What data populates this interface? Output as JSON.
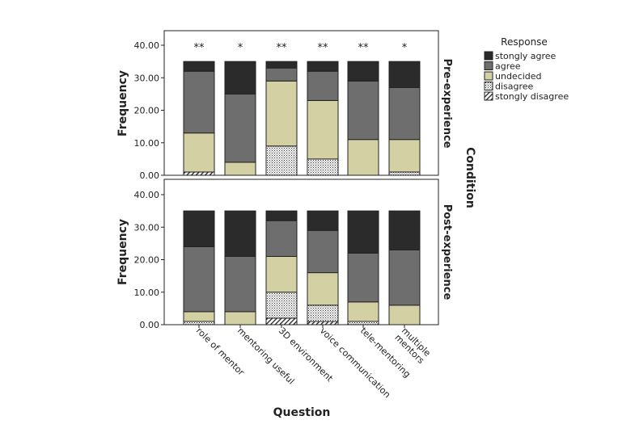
{
  "chart_data": {
    "type": "bar",
    "stacked": true,
    "xlabel": "Question",
    "ylabel": "Frequency",
    "facet_label": "Condition",
    "ylim": [
      0,
      40
    ],
    "yticks": [
      "0.00",
      "10.00",
      "20.00",
      "30.00",
      "40.00"
    ],
    "ytick_values": [
      0,
      10,
      20,
      30,
      40
    ],
    "categories": [
      "role of mentor",
      "mentoring useful",
      "3D environment",
      "voice communication",
      "tele-mentoring",
      [
        "multiple",
        "mentors"
      ]
    ],
    "legend": {
      "title": "Response",
      "placement": "top-right",
      "entries": [
        "stongly agree",
        "agree",
        "undecided",
        "disagree",
        "stongly disagree"
      ]
    },
    "series_order": [
      "stongly disagree",
      "disagree",
      "undecided",
      "agree",
      "stongly agree"
    ],
    "colors": {
      "stongly agree": "#2b2b2b",
      "agree": "#6e6e6e",
      "undecided": "#d3d0a4",
      "disagree": "dots",
      "stongly disagree": "hatch"
    },
    "panels": [
      {
        "name": "Pre-experience",
        "significance": [
          "**",
          "*",
          "**",
          "**",
          "**",
          "*"
        ],
        "series": [
          {
            "name": "stongly disagree",
            "values": [
              1,
              0,
              0,
              0,
              0,
              0
            ]
          },
          {
            "name": "disagree",
            "values": [
              0,
              0,
              9,
              5,
              0,
              1
            ]
          },
          {
            "name": "undecided",
            "values": [
              12,
              4,
              20,
              18,
              11,
              10
            ]
          },
          {
            "name": "agree",
            "values": [
              19,
              21,
              4,
              9,
              18,
              16
            ]
          },
          {
            "name": "stongly agree",
            "values": [
              3,
              10,
              2,
              3,
              6,
              8
            ]
          }
        ]
      },
      {
        "name": "Post-experience",
        "significance": [
          "",
          "",
          "",
          "",
          "",
          ""
        ],
        "series": [
          {
            "name": "stongly disagree",
            "values": [
              0,
              0,
              2,
              1,
              0,
              0
            ]
          },
          {
            "name": "disagree",
            "values": [
              1,
              0,
              8,
              5,
              1,
              0
            ]
          },
          {
            "name": "undecided",
            "values": [
              3,
              4,
              11,
              10,
              6,
              6
            ]
          },
          {
            "name": "agree",
            "values": [
              20,
              17,
              11,
              13,
              15,
              17
            ]
          },
          {
            "name": "stongly agree",
            "values": [
              11,
              14,
              3,
              6,
              13,
              12
            ]
          }
        ]
      }
    ]
  }
}
